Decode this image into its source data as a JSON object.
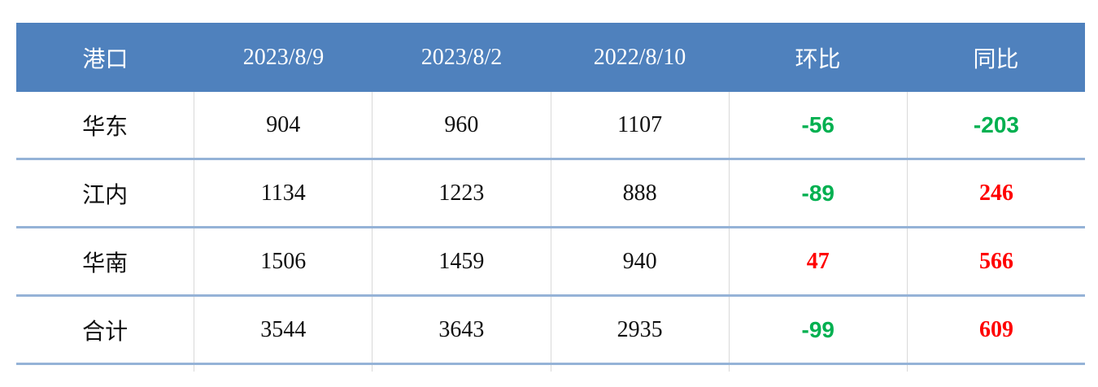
{
  "table": {
    "header": [
      "港口",
      "2023/8/9",
      "2023/8/2",
      "2022/8/10",
      "环比",
      "同比"
    ],
    "rows": [
      [
        "华东",
        "904",
        "960",
        "1107",
        "-56",
        "-203"
      ],
      [
        "江内",
        "1134",
        "1223",
        "888",
        "-89",
        "246"
      ],
      [
        "华南",
        "1506",
        "1459",
        "940",
        "47",
        "566"
      ],
      [
        "合计",
        "3544",
        "3643",
        "2935",
        "-99",
        "609"
      ]
    ]
  }
}
